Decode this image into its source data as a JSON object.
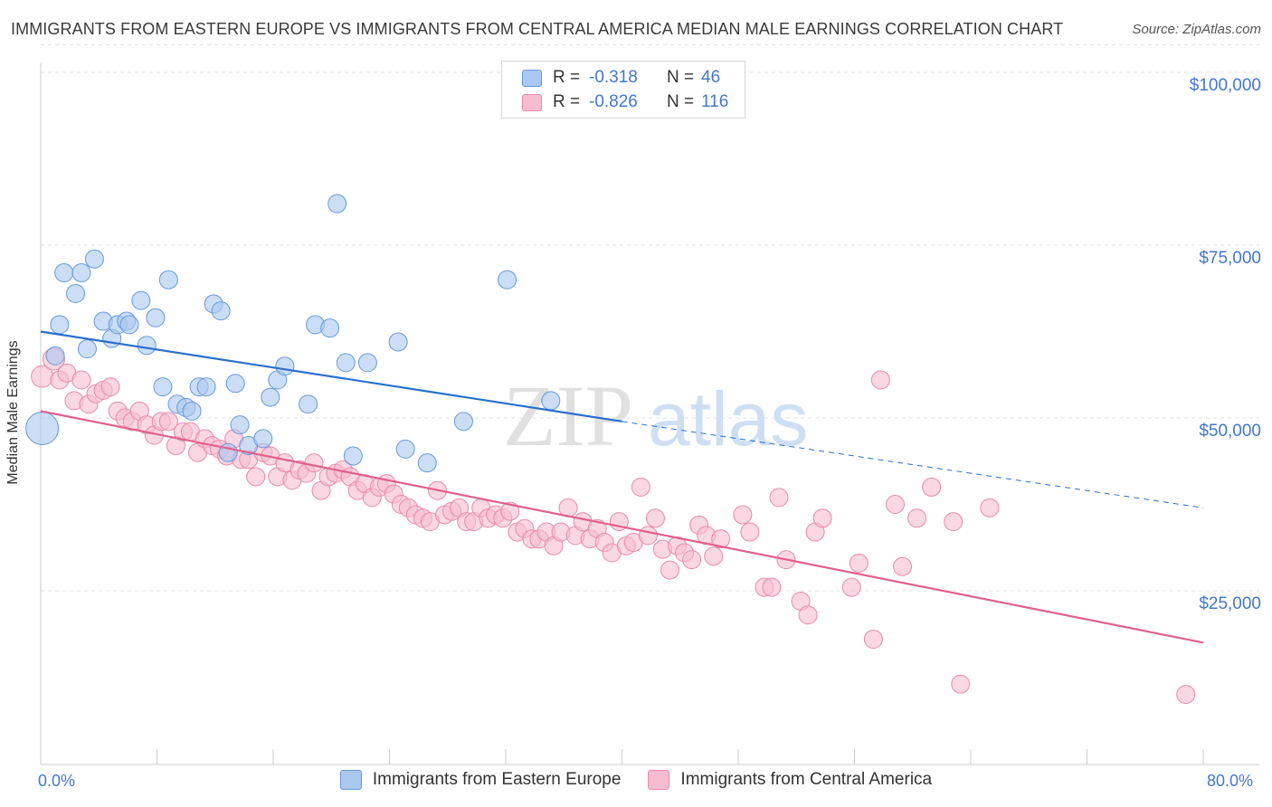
{
  "header": {
    "title": "IMMIGRANTS FROM EASTERN EUROPE VS IMMIGRANTS FROM CENTRAL AMERICA MEDIAN MALE EARNINGS CORRELATION CHART",
    "source": "Source: ZipAtlas.com"
  },
  "watermark": {
    "zip": "ZIP",
    "atlas": "atlas"
  },
  "legend_top": {
    "r_label": "R =",
    "n_label": "N =",
    "rows": [
      {
        "r": "-0.318",
        "n": "46"
      },
      {
        "r": "-0.826",
        "n": "116"
      }
    ]
  },
  "colors": {
    "blue_fill": "#aac8f0",
    "blue_stroke": "#6699dd",
    "blue_line": "#2a6fcc",
    "pink_fill": "#f6bcd0",
    "pink_stroke": "#e88aa8",
    "pink_line": "#e0608e",
    "tick_text": "#4477cc",
    "grid": "#e2e2e2"
  },
  "chart_data": {
    "type": "scatter",
    "title": "IMMIGRANTS FROM EASTERN EUROPE VS IMMIGRANTS FROM CENTRAL AMERICA MEDIAN MALE EARNINGS CORRELATION CHART",
    "xlabel": "",
    "ylabel": "Median Male Earnings",
    "xlim": [
      0,
      80
    ],
    "ylim": [
      0,
      105000
    ],
    "x_tick_labels": [
      "0.0%",
      "80.0%"
    ],
    "y_ticks": [
      {
        "value": 25000,
        "label": "$25,000"
      },
      {
        "value": 50000,
        "label": "$50,000"
      },
      {
        "value": 75000,
        "label": "$75,000"
      },
      {
        "value": 100000,
        "label": "$100,000"
      }
    ],
    "grid": true,
    "legend_position": "bottom",
    "series": [
      {
        "name": "Immigrants from Eastern Europe",
        "color": "#aac8f0",
        "r": -0.318,
        "n": 46,
        "trend": {
          "x0": 0,
          "y0": 62500,
          "x1": 40,
          "y1": 49500,
          "dashed_to_x": 80,
          "dashed_to_y": 37000
        },
        "points": [
          [
            0.1,
            48500,
            18
          ],
          [
            1.0,
            59000,
            10
          ],
          [
            1.3,
            63500,
            10
          ],
          [
            1.6,
            71000,
            10
          ],
          [
            2.4,
            68000,
            10
          ],
          [
            2.8,
            71000,
            10
          ],
          [
            3.2,
            60000,
            10
          ],
          [
            3.7,
            73000,
            10
          ],
          [
            4.3,
            64000,
            10
          ],
          [
            4.9,
            61500,
            10
          ],
          [
            5.3,
            63500,
            10
          ],
          [
            5.9,
            64000,
            10
          ],
          [
            6.1,
            63500,
            10
          ],
          [
            6.9,
            67000,
            10
          ],
          [
            7.3,
            60500,
            10
          ],
          [
            7.9,
            64500,
            10
          ],
          [
            8.4,
            54500,
            10
          ],
          [
            8.8,
            70000,
            10
          ],
          [
            9.4,
            52000,
            10
          ],
          [
            10.0,
            51500,
            10
          ],
          [
            10.4,
            51000,
            10
          ],
          [
            10.9,
            54500,
            10
          ],
          [
            11.4,
            54500,
            10
          ],
          [
            11.9,
            66500,
            10
          ],
          [
            12.4,
            65500,
            10
          ],
          [
            12.9,
            45000,
            10
          ],
          [
            13.4,
            55000,
            10
          ],
          [
            13.7,
            49000,
            10
          ],
          [
            14.3,
            46000,
            10
          ],
          [
            15.3,
            47000,
            10
          ],
          [
            15.8,
            53000,
            10
          ],
          [
            16.3,
            55500,
            10
          ],
          [
            16.8,
            57500,
            10
          ],
          [
            18.4,
            52000,
            10
          ],
          [
            18.9,
            63500,
            10
          ],
          [
            19.9,
            63000,
            10
          ],
          [
            20.4,
            81000,
            10
          ],
          [
            21.0,
            58000,
            10
          ],
          [
            21.5,
            44500,
            10
          ],
          [
            22.5,
            58000,
            10
          ],
          [
            24.6,
            61000,
            10
          ],
          [
            25.1,
            45500,
            10
          ],
          [
            26.6,
            43500,
            10
          ],
          [
            29.1,
            49500,
            10
          ],
          [
            32.1,
            70000,
            10
          ],
          [
            35.1,
            52500,
            10
          ]
        ]
      },
      {
        "name": "Immigrants from Central America",
        "color": "#f6bcd0",
        "r": -0.826,
        "n": 116,
        "trend": {
          "x0": 0,
          "y0": 51000,
          "x1": 80,
          "y1": 17500
        },
        "points": [
          [
            0.1,
            56000,
            12
          ],
          [
            0.9,
            58500,
            12
          ],
          [
            1.3,
            55500,
            10
          ],
          [
            1.8,
            56500,
            10
          ],
          [
            2.3,
            52500,
            10
          ],
          [
            2.8,
            55500,
            10
          ],
          [
            3.3,
            52000,
            10
          ],
          [
            3.8,
            53500,
            10
          ],
          [
            4.3,
            54000,
            10
          ],
          [
            4.8,
            54500,
            10
          ],
          [
            5.3,
            51000,
            10
          ],
          [
            5.8,
            50000,
            10
          ],
          [
            6.3,
            49500,
            10
          ],
          [
            6.8,
            51000,
            10
          ],
          [
            7.3,
            49000,
            10
          ],
          [
            7.8,
            47500,
            10
          ],
          [
            8.3,
            49500,
            10
          ],
          [
            8.8,
            49500,
            10
          ],
          [
            9.3,
            46000,
            10
          ],
          [
            9.8,
            48000,
            10
          ],
          [
            10.3,
            48000,
            10
          ],
          [
            10.8,
            45000,
            10
          ],
          [
            11.3,
            47000,
            10
          ],
          [
            11.8,
            46000,
            10
          ],
          [
            12.3,
            45500,
            10
          ],
          [
            12.8,
            44500,
            10
          ],
          [
            13.3,
            47000,
            10
          ],
          [
            13.8,
            44000,
            10
          ],
          [
            14.3,
            44000,
            10
          ],
          [
            14.8,
            41500,
            10
          ],
          [
            15.3,
            45000,
            10
          ],
          [
            15.8,
            44500,
            10
          ],
          [
            16.3,
            41500,
            10
          ],
          [
            16.8,
            43500,
            10
          ],
          [
            17.3,
            41000,
            10
          ],
          [
            17.8,
            42500,
            10
          ],
          [
            18.3,
            42000,
            10
          ],
          [
            18.8,
            43500,
            10
          ],
          [
            19.3,
            39500,
            10
          ],
          [
            19.8,
            41500,
            10
          ],
          [
            20.3,
            42000,
            10
          ],
          [
            20.8,
            42500,
            10
          ],
          [
            21.3,
            41500,
            10
          ],
          [
            21.8,
            39500,
            10
          ],
          [
            22.3,
            40500,
            10
          ],
          [
            22.8,
            38500,
            10
          ],
          [
            23.3,
            40000,
            10
          ],
          [
            23.8,
            40500,
            10
          ],
          [
            24.3,
            39000,
            10
          ],
          [
            24.8,
            37500,
            10
          ],
          [
            25.3,
            37000,
            10
          ],
          [
            25.8,
            36000,
            10
          ],
          [
            26.3,
            35500,
            10
          ],
          [
            26.8,
            35000,
            10
          ],
          [
            27.3,
            39500,
            10
          ],
          [
            27.8,
            36000,
            10
          ],
          [
            28.3,
            36500,
            10
          ],
          [
            28.8,
            37000,
            10
          ],
          [
            29.3,
            35000,
            10
          ],
          [
            29.8,
            35000,
            10
          ],
          [
            30.3,
            37000,
            10
          ],
          [
            30.8,
            35500,
            10
          ],
          [
            31.3,
            36000,
            10
          ],
          [
            31.8,
            35500,
            10
          ],
          [
            32.3,
            36500,
            10
          ],
          [
            32.8,
            33500,
            10
          ],
          [
            33.3,
            34000,
            10
          ],
          [
            33.8,
            32500,
            10
          ],
          [
            34.3,
            32500,
            10
          ],
          [
            34.8,
            33500,
            10
          ],
          [
            35.3,
            31500,
            10
          ],
          [
            35.8,
            33500,
            10
          ],
          [
            36.3,
            37000,
            10
          ],
          [
            36.8,
            33000,
            10
          ],
          [
            37.3,
            35000,
            10
          ],
          [
            37.8,
            32500,
            10
          ],
          [
            38.3,
            34000,
            10
          ],
          [
            38.8,
            32000,
            10
          ],
          [
            39.3,
            30500,
            10
          ],
          [
            39.8,
            35000,
            10
          ],
          [
            40.3,
            31500,
            10
          ],
          [
            40.8,
            32000,
            10
          ],
          [
            41.3,
            40000,
            10
          ],
          [
            41.8,
            33000,
            10
          ],
          [
            42.3,
            35500,
            10
          ],
          [
            42.8,
            31000,
            10
          ],
          [
            43.3,
            28000,
            10
          ],
          [
            43.8,
            31500,
            10
          ],
          [
            44.3,
            30500,
            10
          ],
          [
            44.8,
            29500,
            10
          ],
          [
            45.3,
            34500,
            10
          ],
          [
            45.8,
            33000,
            10
          ],
          [
            46.3,
            30000,
            10
          ],
          [
            46.8,
            32500,
            10
          ],
          [
            48.3,
            36000,
            10
          ],
          [
            48.8,
            33500,
            10
          ],
          [
            49.8,
            25500,
            10
          ],
          [
            50.3,
            25500,
            10
          ],
          [
            50.8,
            38500,
            10
          ],
          [
            51.3,
            29500,
            10
          ],
          [
            52.3,
            23500,
            10
          ],
          [
            52.8,
            21500,
            10
          ],
          [
            53.3,
            33500,
            10
          ],
          [
            53.8,
            35500,
            10
          ],
          [
            55.8,
            25500,
            10
          ],
          [
            56.3,
            29000,
            10
          ],
          [
            57.3,
            18000,
            10
          ],
          [
            57.8,
            55500,
            10
          ],
          [
            58.8,
            37500,
            10
          ],
          [
            59.3,
            28500,
            10
          ],
          [
            60.3,
            35500,
            10
          ],
          [
            61.3,
            40000,
            10
          ],
          [
            62.8,
            35000,
            10
          ],
          [
            63.3,
            11500,
            10
          ],
          [
            65.3,
            37000,
            10
          ],
          [
            78.8,
            10000,
            10
          ]
        ]
      }
    ]
  },
  "legend_bottom": [
    {
      "label": "Immigrants from Eastern Europe"
    },
    {
      "label": "Immigrants from Central America"
    }
  ]
}
